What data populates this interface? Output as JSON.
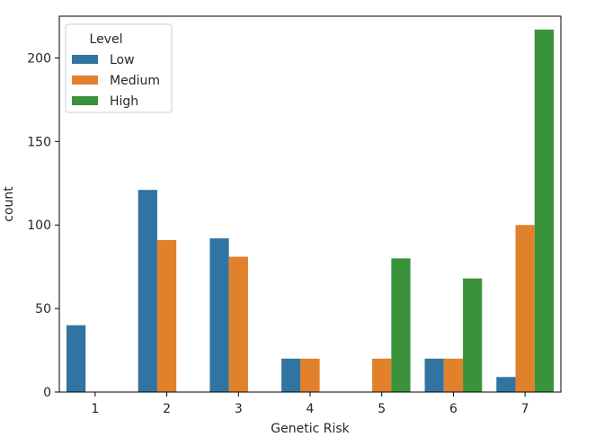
{
  "chart_data": {
    "type": "bar",
    "title": "",
    "xlabel": "Genetic Risk",
    "ylabel": "count",
    "categories": [
      "1",
      "2",
      "3",
      "4",
      "5",
      "6",
      "7"
    ],
    "ylim": [
      0,
      225
    ],
    "yticks": [
      0,
      50,
      100,
      150,
      200
    ],
    "grid": false,
    "legend": {
      "title": "Level",
      "placement": "top-left"
    },
    "series": [
      {
        "name": "Low",
        "color": "#3274a1",
        "values": [
          40,
          121,
          92,
          20,
          0,
          20,
          9
        ]
      },
      {
        "name": "Medium",
        "color": "#e1812c",
        "values": [
          0,
          91,
          81,
          20,
          20,
          20,
          100
        ]
      },
      {
        "name": "High",
        "color": "#3a923a",
        "values": [
          0,
          0,
          0,
          0,
          80,
          68,
          217
        ]
      }
    ]
  }
}
